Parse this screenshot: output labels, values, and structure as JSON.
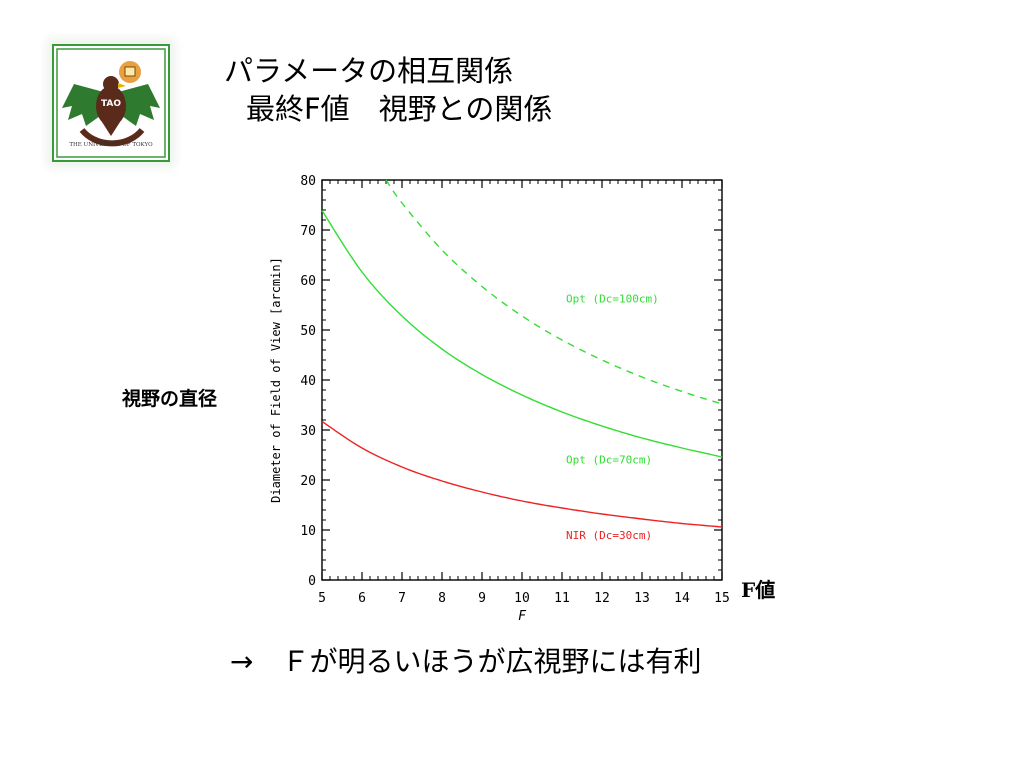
{
  "logo": {
    "label": "TAO",
    "ring_text": "THE UNIVERSITY OF TOKYO",
    "border_color": "#3a9a3a",
    "icon": "eagle-emblem-icon"
  },
  "title": {
    "line1": "パラメータの相互関係",
    "line2": "最終F値　視野との関係"
  },
  "side_labels": {
    "y": "視野の直径",
    "x": "F値"
  },
  "note": "→　Ｆが明るいほうが広視野には有利",
  "chart_data": {
    "type": "line",
    "xlabel": "F",
    "ylabel": "Diameter of Field of View [arcmin]",
    "xlim": [
      5,
      15
    ],
    "ylim": [
      0,
      80
    ],
    "xticks": [
      5,
      6,
      7,
      8,
      9,
      10,
      11,
      12,
      13,
      14,
      15
    ],
    "yticks": [
      0,
      10,
      20,
      30,
      40,
      50,
      60,
      70,
      80
    ],
    "grid": false,
    "series": [
      {
        "name": "Opt (Dc=100cm)",
        "color": "#33dd33",
        "dash": true,
        "x": [
          6.6,
          7,
          8,
          9,
          10,
          11,
          12,
          13,
          14,
          15
        ],
        "y": [
          80,
          75.4,
          66,
          58.7,
          52.8,
          48,
          44,
          40.6,
          37.7,
          35.2
        ]
      },
      {
        "name": "Opt (Dc=70cm)",
        "color": "#33dd33",
        "dash": false,
        "x": [
          5,
          6,
          7,
          8,
          9,
          10,
          11,
          12,
          13,
          14,
          15
        ],
        "y": [
          73.9,
          61.6,
          52.8,
          46.2,
          41.1,
          37,
          33.6,
          30.8,
          28.4,
          26.4,
          24.6
        ]
      },
      {
        "name": "NIR (Dc=30cm)",
        "color": "#ee2222",
        "dash": false,
        "x": [
          5,
          6,
          7,
          8,
          9,
          10,
          11,
          12,
          13,
          14,
          15
        ],
        "y": [
          31.7,
          26.4,
          22.6,
          19.8,
          17.6,
          15.8,
          14.4,
          13.2,
          12.2,
          11.3,
          10.6
        ]
      }
    ],
    "annotations": [
      {
        "text": "Opt (Dc=100cm)",
        "x": 11.1,
        "y": 55.5,
        "color": "#33dd33"
      },
      {
        "text": "Opt (Dc=70cm)",
        "x": 11.1,
        "y": 23.3,
        "color": "#33dd33"
      },
      {
        "text": "NIR (Dc=30cm)",
        "x": 11.1,
        "y": 8.2,
        "color": "#ee2222"
      }
    ]
  }
}
